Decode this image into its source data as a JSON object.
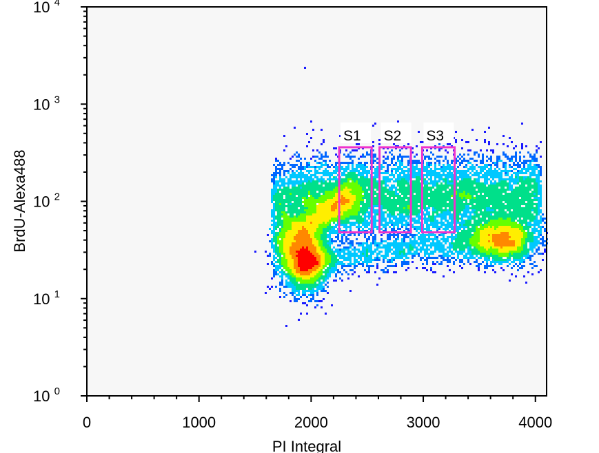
{
  "chart_data": {
    "type": "scatter",
    "subtype": "flow-cytometry-density-dot-plot",
    "xlabel": "PI Integral",
    "ylabel": "BrdU-Alexa488",
    "xlim": [
      0,
      4100
    ],
    "ylim": [
      1,
      10000
    ],
    "yscale": "log",
    "x_ticks": [
      0,
      1000,
      2000,
      3000,
      4000
    ],
    "x_tick_labels": [
      "0",
      "1000",
      "2000",
      "3000",
      "4000"
    ],
    "y_ticks": [
      {
        "base": "10",
        "exp": "0",
        "value": 1
      },
      {
        "base": "10",
        "exp": "1",
        "value": 10
      },
      {
        "base": "10",
        "exp": "2",
        "value": 100
      },
      {
        "base": "10",
        "exp": "3",
        "value": 1000
      },
      {
        "base": "10",
        "exp": "4",
        "value": 10000
      }
    ],
    "grid": false,
    "colormap": [
      "#1a1aff",
      "#0066ff",
      "#00c8ff",
      "#00e08a",
      "#66ff00",
      "#ffee00",
      "#ff8800",
      "#ff0000"
    ],
    "plot_background": "#f7f7f7",
    "populations": [
      {
        "name": "G1 peak",
        "x": 1950,
        "y": 25,
        "sx": 110,
        "sy_log": 0.16,
        "n": 3200
      },
      {
        "name": "S-phase BrdU+ band",
        "x_range": [
          1650,
          4050
        ],
        "y": 110,
        "sy_log": 0.22,
        "n": 9000
      },
      {
        "name": "G2/M BrdU-",
        "x": 3700,
        "y": 40,
        "sx": 170,
        "sy_log": 0.12,
        "n": 2200
      },
      {
        "name": "G1 to S ramp",
        "x_range": [
          1700,
          2400
        ],
        "y_range": [
          35,
          120
        ],
        "n": 2000
      }
    ],
    "gates": [
      {
        "name": "S1",
        "x": [
          2250,
          2540
        ],
        "y": [
          48,
          360
        ],
        "color": "#ee33cc"
      },
      {
        "name": "S2",
        "x": [
          2610,
          2890
        ],
        "y": [
          48,
          360
        ],
        "color": "#ee33cc"
      },
      {
        "name": "S3",
        "x": [
          2990,
          3280
        ],
        "y": [
          48,
          360
        ],
        "color": "#ee33cc"
      }
    ]
  }
}
